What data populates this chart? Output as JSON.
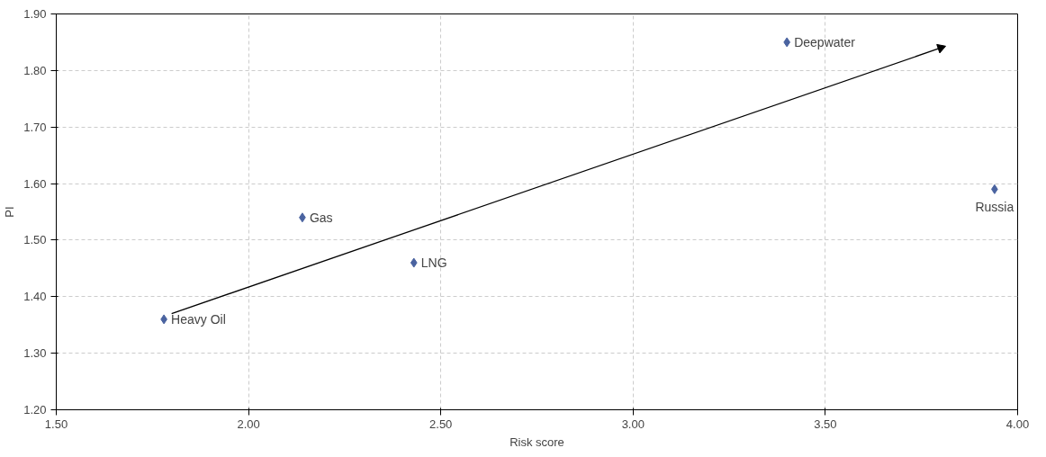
{
  "chart_data": {
    "type": "scatter",
    "xlabel": "Risk score",
    "ylabel": "PI",
    "xlim": [
      1.5,
      4.0
    ],
    "xticks": [
      {
        "value": 1.5,
        "label": "1.50"
      },
      {
        "value": 2.0,
        "label": "2.00"
      },
      {
        "value": 2.5,
        "label": "2.50"
      },
      {
        "value": 3.0,
        "label": "3.00"
      },
      {
        "value": 3.5,
        "label": "3.50"
      },
      {
        "value": 4.0,
        "label": "4.00"
      }
    ],
    "ylim": [
      1.2,
      1.9
    ],
    "yticks": [
      {
        "value": 1.2,
        "label": "1.20"
      },
      {
        "value": 1.3,
        "label": "1.30"
      },
      {
        "value": 1.4,
        "label": "1.40"
      },
      {
        "value": 1.5,
        "label": "1.50"
      },
      {
        "value": 1.6,
        "label": "1.60"
      },
      {
        "value": 1.7,
        "label": "1.70"
      },
      {
        "value": 1.8,
        "label": "1.80"
      },
      {
        "value": 1.9,
        "label": "1.90"
      }
    ],
    "grid": true,
    "marker": "diamond",
    "series": [
      {
        "type": "scatter",
        "color": "#4a63a0",
        "x": [
          1.78,
          2.14,
          2.43,
          3.4,
          3.94
        ],
        "values": [
          1.36,
          1.54,
          1.46,
          1.85,
          1.59
        ]
      },
      {
        "type": "line",
        "marker": "triangle",
        "color": "#000000",
        "x": [
          1.8,
          3.8
        ],
        "values": [
          1.37,
          1.84
        ]
      }
    ],
    "annotations": [
      {
        "text": "Heavy Oil",
        "x": 1.78,
        "y": 1.36
      },
      {
        "text": "Gas",
        "x": 2.14,
        "y": 1.54
      },
      {
        "text": "LNG",
        "x": 2.43,
        "y": 1.46
      },
      {
        "text": "Deepwater",
        "x": 3.4,
        "y": 1.85
      },
      {
        "text": "Russia",
        "x": 3.94,
        "y": 1.59
      }
    ]
  }
}
